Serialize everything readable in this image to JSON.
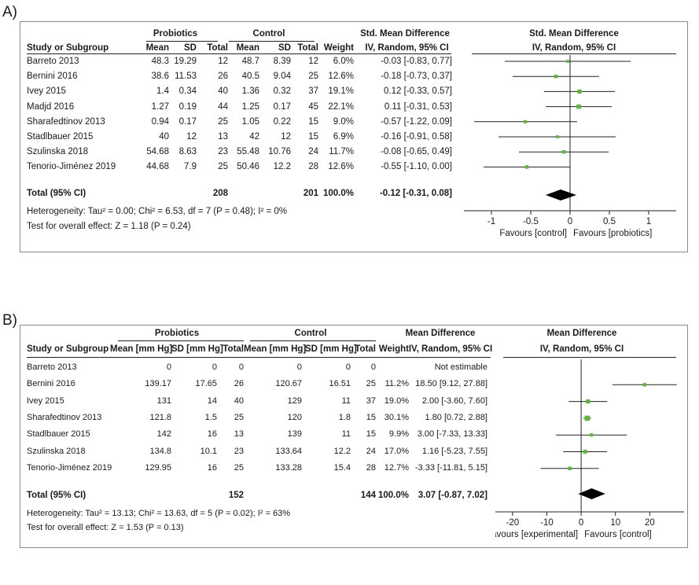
{
  "chart_data": [
    {
      "type": "forest",
      "panel_label": "A)",
      "group_labels": {
        "experimental": "Probiotics",
        "control": "Control"
      },
      "column_headers": [
        "Study or Subgroup",
        "Mean",
        "SD",
        "Total",
        "Mean",
        "SD",
        "Total",
        "Weight",
        "IV, Random, 95% CI",
        "IV, Random, 95% CI"
      ],
      "effect_title": "Std. Mean Difference",
      "studies": [
        {
          "name": "Barreto 2013",
          "e_mean": "48.3",
          "e_sd": "19.29",
          "e_total": "12",
          "c_mean": "48.7",
          "c_sd": "8.39",
          "c_total": "12",
          "weight": "6.0%",
          "ci_text": "-0.03 [-0.83, 0.77]",
          "est": -0.03,
          "lo": -0.83,
          "hi": 0.77
        },
        {
          "name": "Bernini 2016",
          "e_mean": "38.6",
          "e_sd": "11.53",
          "e_total": "26",
          "c_mean": "40.5",
          "c_sd": "9.04",
          "c_total": "25",
          "weight": "12.6%",
          "ci_text": "-0.18 [-0.73, 0.37]",
          "est": -0.18,
          "lo": -0.73,
          "hi": 0.37
        },
        {
          "name": "Ivey 2015",
          "e_mean": "1.4",
          "e_sd": "0.34",
          "e_total": "40",
          "c_mean": "1.36",
          "c_sd": "0.32",
          "c_total": "37",
          "weight": "19.1%",
          "ci_text": "0.12 [-0.33, 0.57]",
          "est": 0.12,
          "lo": -0.33,
          "hi": 0.57
        },
        {
          "name": "Madjd 2016",
          "e_mean": "1.27",
          "e_sd": "0.19",
          "e_total": "44",
          "c_mean": "1.25",
          "c_sd": "0.17",
          "c_total": "45",
          "weight": "22.1%",
          "ci_text": "0.11 [-0.31, 0.53]",
          "est": 0.11,
          "lo": -0.31,
          "hi": 0.53
        },
        {
          "name": "Sharafedtinov 2013",
          "e_mean": "0.94",
          "e_sd": "0.17",
          "e_total": "25",
          "c_mean": "1.05",
          "c_sd": "0.22",
          "c_total": "15",
          "weight": "9.0%",
          "ci_text": "-0.57 [-1.22, 0.09]",
          "est": -0.57,
          "lo": -1.22,
          "hi": 0.09
        },
        {
          "name": "Stadlbauer 2015",
          "e_mean": "40",
          "e_sd": "12",
          "e_total": "13",
          "c_mean": "42",
          "c_sd": "12",
          "c_total": "15",
          "weight": "6.9%",
          "ci_text": "-0.16 [-0.91, 0.58]",
          "est": -0.16,
          "lo": -0.91,
          "hi": 0.58
        },
        {
          "name": "Szulinska 2018",
          "e_mean": "54.68",
          "e_sd": "8.63",
          "e_total": "23",
          "c_mean": "55.48",
          "c_sd": "10.76",
          "c_total": "24",
          "weight": "11.7%",
          "ci_text": "-0.08 [-0.65, 0.49]",
          "est": -0.08,
          "lo": -0.65,
          "hi": 0.49
        },
        {
          "name": "Tenorio-Jiménez 2019",
          "e_mean": "44.68",
          "e_sd": "7.9",
          "e_total": "25",
          "c_mean": "50.46",
          "c_sd": "12.2",
          "c_total": "28",
          "weight": "12.6%",
          "ci_text": "-0.55 [-1.10, 0.00]",
          "est": -0.55,
          "lo": -1.1,
          "hi": 0.0
        }
      ],
      "total": {
        "label": "Total (95% CI)",
        "e_total": "208",
        "c_total": "201",
        "weight": "100.0%",
        "ci_text": "-0.12 [-0.31, 0.08]",
        "est": -0.12,
        "lo": -0.31,
        "hi": 0.08
      },
      "heterogeneity": "Heterogeneity: Tau² = 0.00; Chi² = 6.53, df = 7 (P = 0.48); I² = 0%",
      "overall_effect": "Test for overall effect: Z = 1.18 (P = 0.24)",
      "xlim": [
        -1.2,
        1.2
      ],
      "ticks": [
        {
          "v": -1,
          "label": "-1"
        },
        {
          "v": -0.5,
          "label": "-0.5"
        },
        {
          "v": 0,
          "label": "0"
        },
        {
          "v": 0.5,
          "label": "0.5"
        },
        {
          "v": 1,
          "label": "1"
        }
      ],
      "favours_left": "Favours [control]",
      "favours_right": "Favours [probiotics]"
    },
    {
      "type": "forest",
      "panel_label": "B)",
      "group_labels": {
        "experimental": "Probiotics",
        "control": "Control"
      },
      "column_headers": [
        "Study or Subgroup",
        "Mean [mm Hg]",
        "SD [mm Hg]",
        "Total",
        "Mean [mm Hg]",
        "SD [mm Hg]",
        "Total",
        "Weight",
        "IV, Random, 95% CI",
        "IV, Random, 95% CI"
      ],
      "effect_title": "Mean Difference",
      "studies": [
        {
          "name": "Barreto 2013",
          "e_mean": "0",
          "e_sd": "0",
          "e_total": "0",
          "c_mean": "0",
          "c_sd": "0",
          "c_total": "0",
          "weight": "",
          "ci_text": "Not estimable",
          "est": null,
          "lo": null,
          "hi": null
        },
        {
          "name": "Bernini 2016",
          "e_mean": "139.17",
          "e_sd": "17.65",
          "e_total": "26",
          "c_mean": "120.67",
          "c_sd": "16.51",
          "c_total": "25",
          "weight": "11.2%",
          "ci_text": "18.50 [9.12, 27.88]",
          "est": 18.5,
          "lo": 9.12,
          "hi": 27.88
        },
        {
          "name": "Ivey 2015",
          "e_mean": "131",
          "e_sd": "14",
          "e_total": "40",
          "c_mean": "129",
          "c_sd": "11",
          "c_total": "37",
          "weight": "19.0%",
          "ci_text": "2.00 [-3.60, 7.60]",
          "est": 2.0,
          "lo": -3.6,
          "hi": 7.6
        },
        {
          "name": "Sharafedtinov 2013",
          "e_mean": "121.8",
          "e_sd": "1.5",
          "e_total": "25",
          "c_mean": "120",
          "c_sd": "1.8",
          "c_total": "15",
          "weight": "30.1%",
          "ci_text": "1.80 [0.72, 2.88]",
          "est": 1.8,
          "lo": 0.72,
          "hi": 2.88
        },
        {
          "name": "Stadlbauer 2015",
          "e_mean": "142",
          "e_sd": "16",
          "e_total": "13",
          "c_mean": "139",
          "c_sd": "11",
          "c_total": "15",
          "weight": "9.9%",
          "ci_text": "3.00 [-7.33, 13.33]",
          "est": 3.0,
          "lo": -7.33,
          "hi": 13.33
        },
        {
          "name": "Szulinska 2018",
          "e_mean": "134.8",
          "e_sd": "10.1",
          "e_total": "23",
          "c_mean": "133.64",
          "c_sd": "12.2",
          "c_total": "24",
          "weight": "17.0%",
          "ci_text": "1.16 [-5.23, 7.55]",
          "est": 1.16,
          "lo": -5.23,
          "hi": 7.55
        },
        {
          "name": "Tenorio-Jiménez 2019",
          "e_mean": "129.95",
          "e_sd": "16",
          "e_total": "25",
          "c_mean": "133.28",
          "c_sd": "15.4",
          "c_total": "28",
          "weight": "12.7%",
          "ci_text": "-3.33 [-11.81, 5.15]",
          "est": -3.33,
          "lo": -11.81,
          "hi": 5.15
        }
      ],
      "total": {
        "label": "Total (95% CI)",
        "e_total": "152",
        "c_total": "144",
        "weight": "100.0%",
        "ci_text": "3.07 [-0.87, 7.02]",
        "est": 3.07,
        "lo": -0.87,
        "hi": 7.02
      },
      "heterogeneity": "Heterogeneity: Tau² = 13.13; Chi² = 13.63, df = 5 (P = 0.02); I² = 63%",
      "overall_effect": "Test for overall effect: Z = 1.53 (P = 0.13)",
      "xlim": [
        -25,
        30
      ],
      "ticks": [
        {
          "v": -20,
          "label": "-20"
        },
        {
          "v": -10,
          "label": "-10"
        },
        {
          "v": 0,
          "label": "0"
        },
        {
          "v": 10,
          "label": "10"
        },
        {
          "v": 20,
          "label": "20"
        }
      ],
      "favours_left": "Favours [experimental]",
      "favours_right": "Favours [control]"
    }
  ],
  "colors": {
    "marker": "#5cb83a",
    "diamond": "#000000",
    "line": "#222222",
    "frame": "#8a8a8a"
  }
}
